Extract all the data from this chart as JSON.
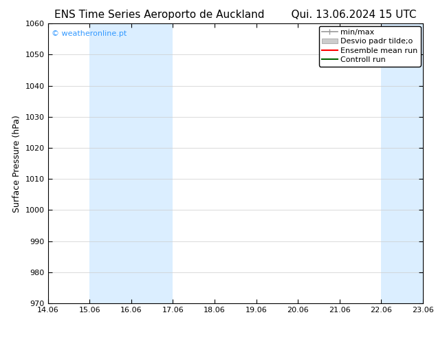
{
  "title_left": "ENS Time Series Aeroporto de Auckland",
  "title_right": "Qui. 13.06.2024 15 UTC",
  "ylabel": "Surface Pressure (hPa)",
  "ylim": [
    970,
    1060
  ],
  "yticks": [
    970,
    980,
    990,
    1000,
    1010,
    1020,
    1030,
    1040,
    1050,
    1060
  ],
  "xtick_positions": [
    0,
    1,
    2,
    3,
    4,
    5,
    6,
    7,
    8,
    9
  ],
  "xtick_labels": [
    "14.06",
    "15.06",
    "16.06",
    "17.06",
    "18.06",
    "19.06",
    "20.06",
    "21.06",
    "22.06",
    "23.06"
  ],
  "xlim": [
    0,
    9
  ],
  "watermark": "© weatheronline.pt",
  "watermark_color": "#3399ff",
  "shaded_bands": [
    {
      "x_start": 1.0,
      "x_end": 2.0,
      "color": "#dbeeff"
    },
    {
      "x_start": 2.0,
      "x_end": 3.0,
      "color": "#dbeeff"
    },
    {
      "x_start": 8.0,
      "x_end": 8.5,
      "color": "#dbeeff"
    },
    {
      "x_start": 8.5,
      "x_end": 9.0,
      "color": "#dbeeff"
    }
  ],
  "right_edge_band": {
    "x_start": 8.8,
    "x_end": 9.0,
    "color": "#dbeeff"
  },
  "legend_labels": [
    "min/max",
    "Desvio padr tilde;o",
    "Ensemble mean run",
    "Controll run"
  ],
  "legend_colors_line": [
    "#999999",
    "#cccccc",
    "#ff0000",
    "#006400"
  ],
  "background_color": "#ffffff",
  "plot_bg_color": "#ffffff",
  "grid_color": "#cccccc",
  "font_color": "#000000",
  "font_family": "DejaVu Sans",
  "title_fontsize": 11,
  "axis_fontsize": 9,
  "tick_fontsize": 8,
  "legend_fontsize": 8
}
